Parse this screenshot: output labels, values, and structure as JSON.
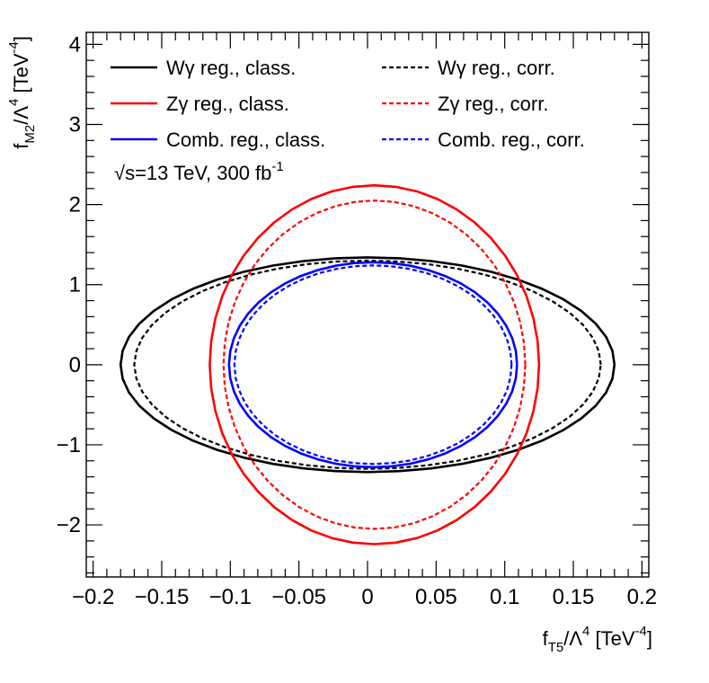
{
  "chart_data": {
    "type": "line",
    "title": "",
    "xlabel": {
      "base": "f",
      "sub": "T5",
      "mid": "/Λ",
      "sup1": "4",
      "unit": " [TeV",
      "sup2": "-4",
      "close": "]"
    },
    "ylabel": {
      "base": "f",
      "sub": "M2",
      "mid": "/Λ",
      "sup1": "4",
      "unit": " [TeV",
      "sup2": "-4",
      "close": "]"
    },
    "xlim": [
      -0.205,
      0.205
    ],
    "ylim": [
      -2.65,
      4.15
    ],
    "x_ticks": [
      -0.2,
      -0.15,
      -0.1,
      -0.05,
      0,
      0.05,
      0.1,
      0.15,
      0.2
    ],
    "x_tick_labels": [
      "−0.2",
      "−0.15",
      "−0.1",
      "−0.05",
      "0",
      "0.05",
      "0.1",
      "0.15",
      "0.2"
    ],
    "y_ticks": [
      -2,
      -1,
      0,
      1,
      2,
      3,
      4
    ],
    "y_tick_labels": [
      "−2",
      "−1",
      "0",
      "1",
      "2",
      "3",
      "4"
    ],
    "grid": false,
    "annotation": {
      "prefix": "√s=13 TeV, 300 fb",
      "sup": "-1"
    },
    "legend_position": "top",
    "series": [
      {
        "name": "Wγ reg., class.",
        "color": "#000000",
        "dash": "solid",
        "center": [
          0.0,
          0.0
        ],
        "semi_axes": [
          0.18,
          1.34
        ]
      },
      {
        "name": "Wγ reg., corr.",
        "color": "#000000",
        "dash": "dashed",
        "center": [
          0.0,
          0.0
        ],
        "semi_axes": [
          0.17,
          1.3
        ]
      },
      {
        "name": "Zγ reg., class.",
        "color": "#ff0000",
        "dash": "solid",
        "center": [
          0.005,
          0.0
        ],
        "semi_axes": [
          0.12,
          2.24
        ]
      },
      {
        "name": "Zγ reg., corr.",
        "color": "#ff0000",
        "dash": "dashed",
        "center": [
          0.005,
          0.0
        ],
        "semi_axes": [
          0.11,
          2.05
        ]
      },
      {
        "name": "Comb. reg., class.",
        "color": "#0000ff",
        "dash": "solid",
        "center": [
          0.004,
          0.0
        ],
        "semi_axes": [
          0.105,
          1.28
        ]
      },
      {
        "name": "Comb. reg., corr.",
        "color": "#0000ff",
        "dash": "dashed",
        "center": [
          0.004,
          0.0
        ],
        "semi_axes": [
          0.101,
          1.24
        ]
      }
    ]
  }
}
